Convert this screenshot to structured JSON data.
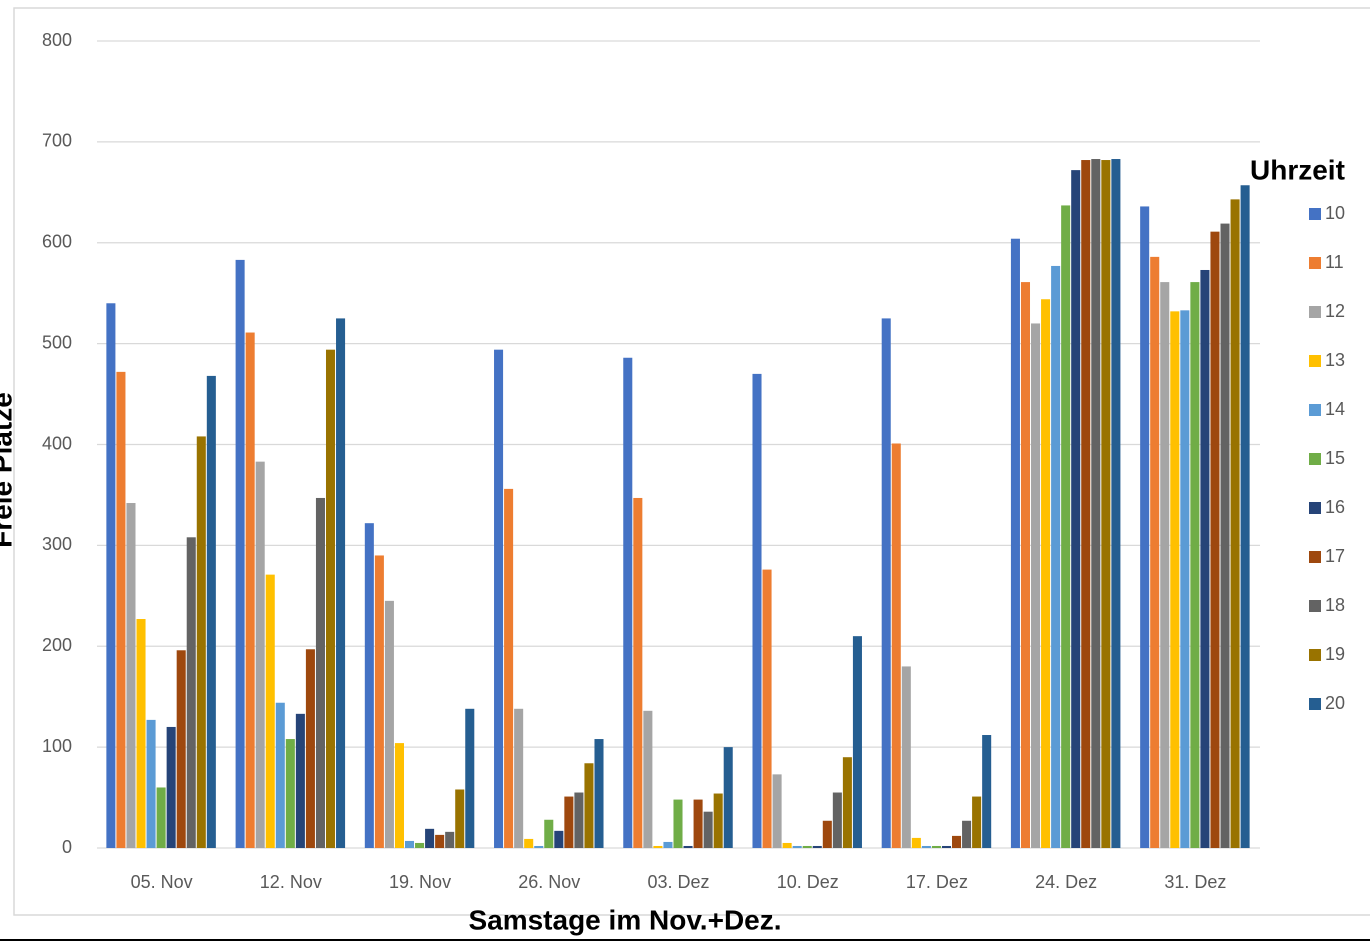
{
  "chart_data": {
    "type": "bar",
    "x_label": "Samstage im Nov.+Dez.",
    "y_label": "Freie Plätze",
    "legend_title": "Uhrzeit",
    "legend": "right",
    "grid": true,
    "categories": [
      "05. Nov",
      "12. Nov",
      "19. Nov",
      "26. Nov",
      "03. Dez",
      "10. Dez",
      "17. Dez",
      "24. Dez",
      "31. Dez"
    ],
    "ylim": [
      0,
      800
    ],
    "yticks": [
      0,
      100,
      200,
      300,
      400,
      500,
      600,
      700,
      800
    ],
    "series": [
      {
        "name": "10",
        "color": "#4472c4",
        "values": [
          540,
          583,
          322,
          494,
          486,
          470,
          525,
          604,
          636
        ]
      },
      {
        "name": "11",
        "color": "#ed7d31",
        "values": [
          472,
          511,
          290,
          356,
          347,
          276,
          401,
          561,
          586
        ]
      },
      {
        "name": "12",
        "color": "#a5a5a5",
        "values": [
          342,
          383,
          245,
          138,
          136,
          73,
          180,
          520,
          561
        ]
      },
      {
        "name": "13",
        "color": "#ffc000",
        "values": [
          227,
          271,
          104,
          9,
          2,
          5,
          10,
          544,
          532
        ]
      },
      {
        "name": "14",
        "color": "#5b9bd5",
        "values": [
          127,
          144,
          7,
          2,
          6,
          2,
          2,
          577,
          533
        ]
      },
      {
        "name": "15",
        "color": "#70ad47",
        "values": [
          60,
          108,
          5,
          28,
          48,
          2,
          2,
          637,
          561
        ]
      },
      {
        "name": "16",
        "color": "#264478",
        "values": [
          120,
          133,
          19,
          17,
          2,
          2,
          2,
          672,
          573
        ]
      },
      {
        "name": "17",
        "color": "#9e480e",
        "values": [
          196,
          197,
          13,
          51,
          48,
          27,
          12,
          682,
          611
        ]
      },
      {
        "name": "18",
        "color": "#636363",
        "values": [
          308,
          347,
          16,
          55,
          36,
          55,
          27,
          683,
          619
        ]
      },
      {
        "name": "19",
        "color": "#997300",
        "values": [
          408,
          494,
          58,
          84,
          54,
          90,
          51,
          682,
          643
        ]
      },
      {
        "name": "20",
        "color": "#255e91",
        "values": [
          468,
          525,
          138,
          108,
          100,
          210,
          112,
          683,
          657
        ]
      }
    ]
  }
}
